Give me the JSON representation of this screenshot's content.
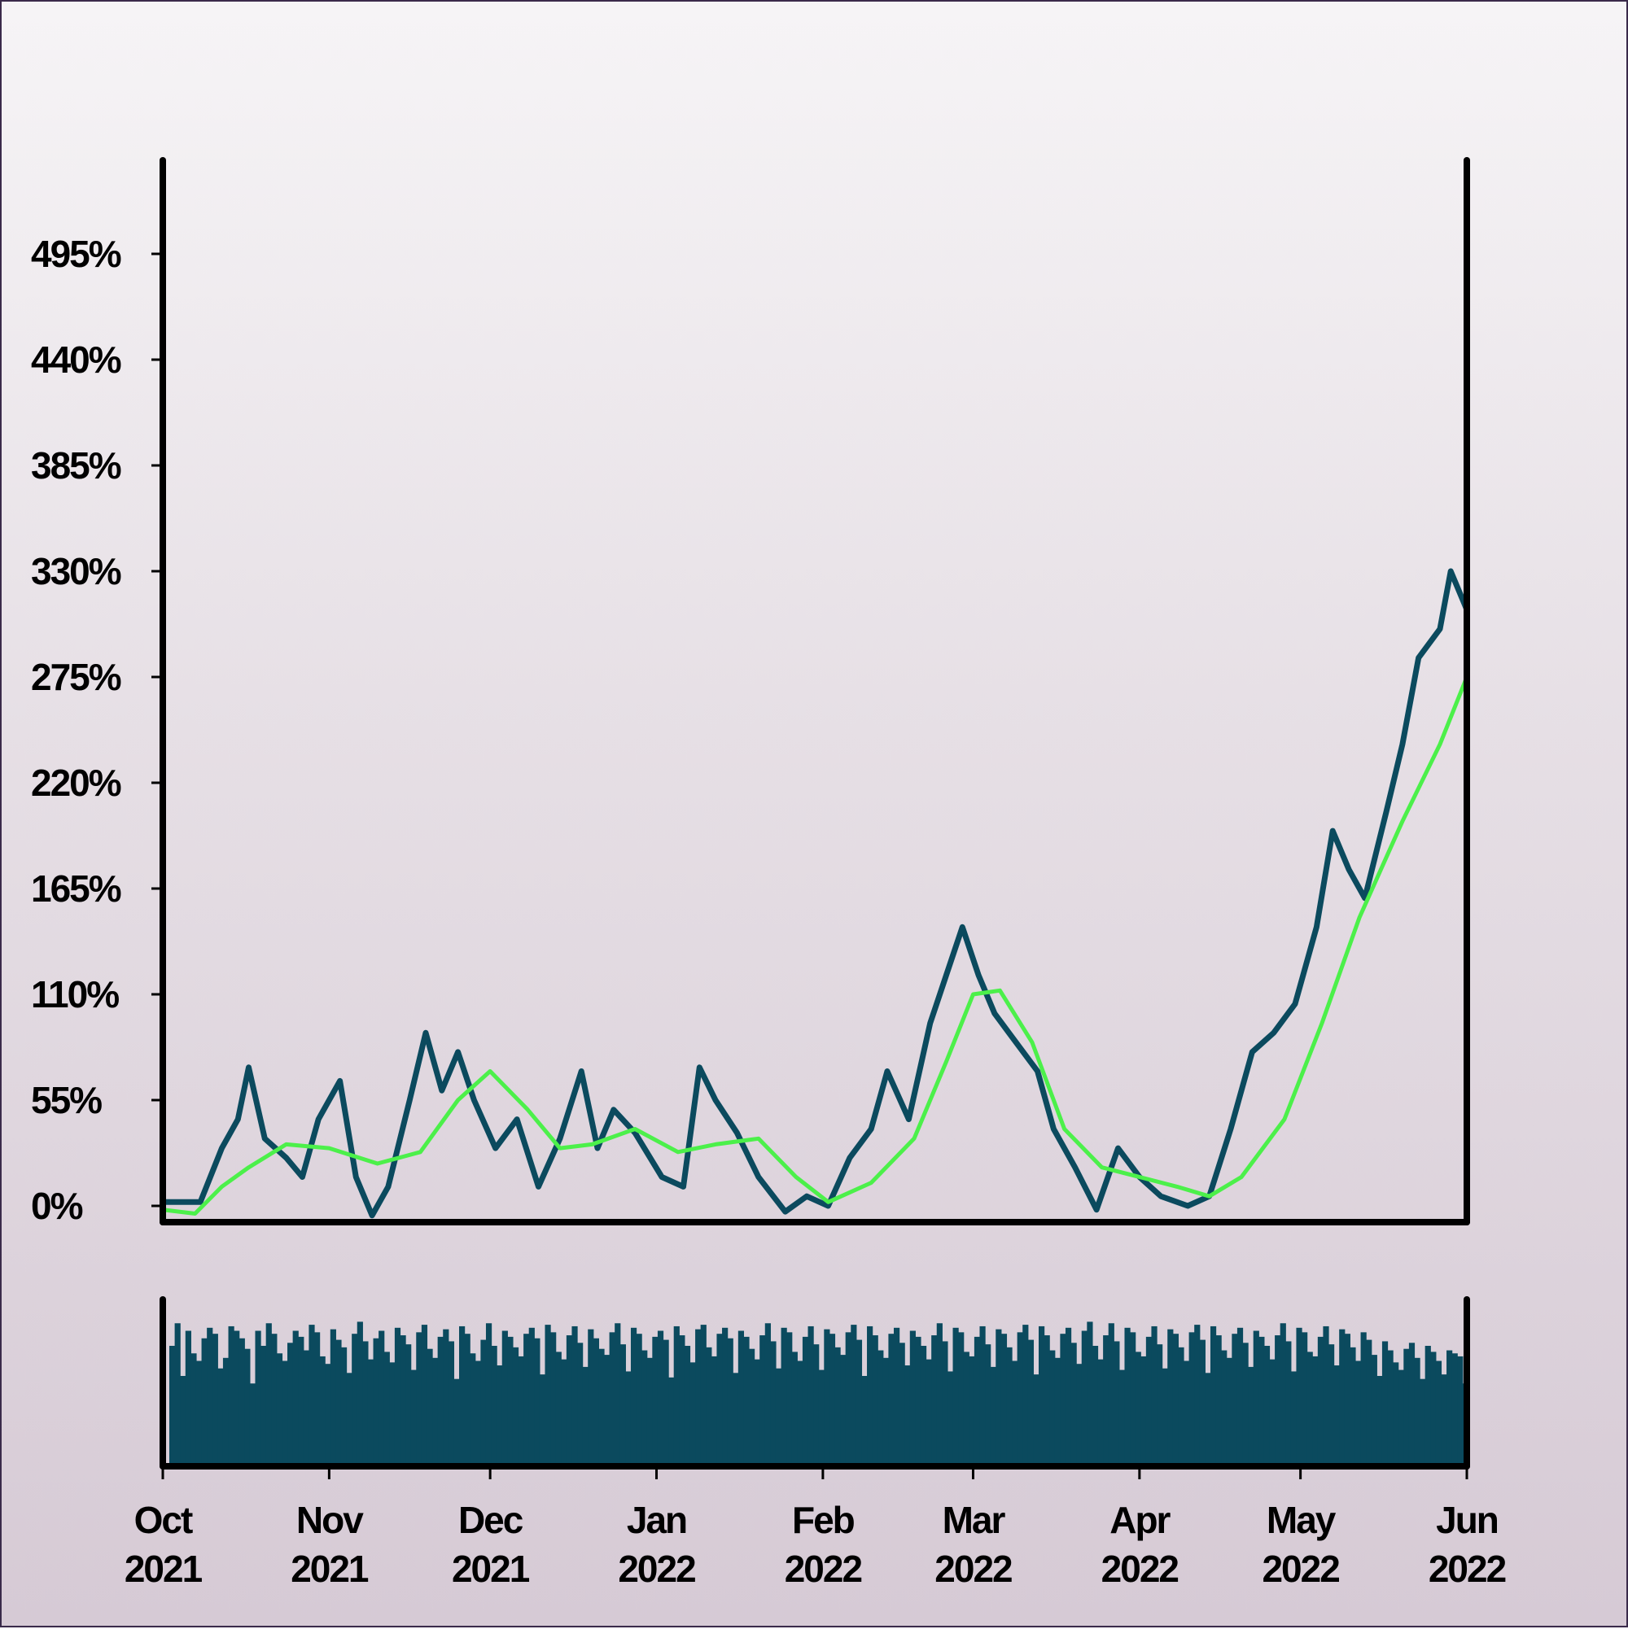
{
  "chart_data": {
    "type": "line",
    "x_range": [
      "2021-10-01",
      "2022-06-01"
    ],
    "ylim": [
      0,
      550
    ],
    "y_ticks": [
      "0%",
      "55%",
      "110%",
      "165%",
      "220%",
      "275%",
      "330%",
      "385%",
      "440%",
      "495%"
    ],
    "y_tick_values": [
      0,
      55,
      110,
      165,
      220,
      275,
      330,
      385,
      440,
      495
    ],
    "x_ticks": [
      {
        "month": "Oct",
        "year": "2021",
        "date": "2021-10-01"
      },
      {
        "month": "Nov",
        "year": "2021",
        "date": "2021-11-01"
      },
      {
        "month": "Dec",
        "year": "2021",
        "date": "2021-12-01"
      },
      {
        "month": "Jan",
        "year": "2022",
        "date": "2022-01-01"
      },
      {
        "month": "Feb",
        "year": "2022",
        "date": "2022-02-01"
      },
      {
        "month": "Mar",
        "year": "2022",
        "date": "2022-03-01"
      },
      {
        "month": "Apr",
        "year": "2022",
        "date": "2022-04-01"
      },
      {
        "month": "May",
        "year": "2022",
        "date": "2022-05-01"
      },
      {
        "month": "Jun",
        "year": "2022",
        "date": "2022-06-01"
      }
    ],
    "series": [
      {
        "color": "#0b4a5e",
        "points": [
          [
            "2021-10-01",
            2
          ],
          [
            "2021-10-08",
            2
          ],
          [
            "2021-10-12",
            30
          ],
          [
            "2021-10-15",
            45
          ],
          [
            "2021-10-17",
            72
          ],
          [
            "2021-10-20",
            35
          ],
          [
            "2021-10-24",
            25
          ],
          [
            "2021-10-27",
            15
          ],
          [
            "2021-10-30",
            45
          ],
          [
            "2021-11-03",
            65
          ],
          [
            "2021-11-06",
            15
          ],
          [
            "2021-11-09",
            -5
          ],
          [
            "2021-11-12",
            10
          ],
          [
            "2021-11-16",
            55
          ],
          [
            "2021-11-19",
            90
          ],
          [
            "2021-11-22",
            60
          ],
          [
            "2021-11-25",
            80
          ],
          [
            "2021-11-28",
            55
          ],
          [
            "2021-12-02",
            30
          ],
          [
            "2021-12-06",
            45
          ],
          [
            "2021-12-10",
            10
          ],
          [
            "2021-12-14",
            35
          ],
          [
            "2021-12-18",
            70
          ],
          [
            "2021-12-21",
            30
          ],
          [
            "2021-12-24",
            50
          ],
          [
            "2021-12-28",
            38
          ],
          [
            "2022-01-02",
            15
          ],
          [
            "2022-01-06",
            10
          ],
          [
            "2022-01-09",
            72
          ],
          [
            "2022-01-12",
            55
          ],
          [
            "2022-01-16",
            38
          ],
          [
            "2022-01-20",
            15
          ],
          [
            "2022-01-25",
            -3
          ],
          [
            "2022-01-29",
            5
          ],
          [
            "2022-02-02",
            0
          ],
          [
            "2022-02-06",
            25
          ],
          [
            "2022-02-10",
            40
          ],
          [
            "2022-02-13",
            70
          ],
          [
            "2022-02-17",
            45
          ],
          [
            "2022-02-21",
            95
          ],
          [
            "2022-02-24",
            120
          ],
          [
            "2022-02-27",
            145
          ],
          [
            "2022-03-02",
            120
          ],
          [
            "2022-03-05",
            100
          ],
          [
            "2022-03-09",
            85
          ],
          [
            "2022-03-13",
            70
          ],
          [
            "2022-03-16",
            40
          ],
          [
            "2022-03-20",
            20
          ],
          [
            "2022-03-24",
            -2
          ],
          [
            "2022-03-28",
            30
          ],
          [
            "2022-04-01",
            15
          ],
          [
            "2022-04-05",
            5
          ],
          [
            "2022-04-10",
            0
          ],
          [
            "2022-04-14",
            5
          ],
          [
            "2022-04-18",
            40
          ],
          [
            "2022-04-22",
            80
          ],
          [
            "2022-04-26",
            90
          ],
          [
            "2022-04-30",
            105
          ],
          [
            "2022-05-04",
            145
          ],
          [
            "2022-05-07",
            195
          ],
          [
            "2022-05-10",
            175
          ],
          [
            "2022-05-13",
            160
          ],
          [
            "2022-05-17",
            205
          ],
          [
            "2022-05-20",
            240
          ],
          [
            "2022-05-23",
            285
          ],
          [
            "2022-05-27",
            300
          ],
          [
            "2022-05-29",
            330
          ],
          [
            "2022-06-01",
            310
          ]
        ]
      },
      {
        "color": "#4cf04a",
        "points": [
          [
            "2021-10-01",
            -2
          ],
          [
            "2021-10-07",
            -4
          ],
          [
            "2021-10-12",
            10
          ],
          [
            "2021-10-17",
            20
          ],
          [
            "2021-10-24",
            32
          ],
          [
            "2021-11-01",
            30
          ],
          [
            "2021-11-10",
            22
          ],
          [
            "2021-11-18",
            28
          ],
          [
            "2021-11-25",
            55
          ],
          [
            "2021-12-01",
            70
          ],
          [
            "2021-12-08",
            50
          ],
          [
            "2021-12-14",
            30
          ],
          [
            "2021-12-20",
            32
          ],
          [
            "2021-12-28",
            40
          ],
          [
            "2022-01-05",
            28
          ],
          [
            "2022-01-12",
            32
          ],
          [
            "2022-01-20",
            35
          ],
          [
            "2022-01-27",
            15
          ],
          [
            "2022-02-02",
            2
          ],
          [
            "2022-02-10",
            12
          ],
          [
            "2022-02-18",
            35
          ],
          [
            "2022-02-24",
            75
          ],
          [
            "2022-03-01",
            110
          ],
          [
            "2022-03-06",
            112
          ],
          [
            "2022-03-12",
            85
          ],
          [
            "2022-03-18",
            40
          ],
          [
            "2022-03-25",
            20
          ],
          [
            "2022-04-01",
            15
          ],
          [
            "2022-04-08",
            10
          ],
          [
            "2022-04-14",
            5
          ],
          [
            "2022-04-20",
            15
          ],
          [
            "2022-04-28",
            45
          ],
          [
            "2022-05-05",
            95
          ],
          [
            "2022-05-12",
            150
          ],
          [
            "2022-05-20",
            200
          ],
          [
            "2022-05-27",
            240
          ],
          [
            "2022-06-01",
            275
          ]
        ]
      }
    ],
    "volume": {
      "color": "#0b4a5e",
      "min": 0,
      "max": 100,
      "step_days": 1,
      "values": [
        80,
        95,
        60,
        90,
        75,
        70,
        85,
        92,
        88,
        65,
        72,
        93,
        90,
        85,
        78,
        55,
        90,
        80,
        95,
        88,
        75,
        70,
        82,
        90,
        86,
        77,
        94,
        89,
        73,
        68,
        91,
        84,
        79,
        62,
        88,
        96,
        83,
        71,
        85,
        90,
        76,
        69,
        92,
        87,
        81,
        64,
        89,
        94,
        78,
        72,
        86,
        91,
        83,
        58,
        93,
        88,
        75,
        70,
        84,
        95,
        80,
        67,
        90,
        86,
        79,
        73,
        88,
        92,
        85,
        61,
        94,
        89,
        76,
        71,
        87,
        93,
        82,
        66,
        91,
        85,
        78,
        74,
        89,
        95,
        81,
        63,
        92,
        88,
        77,
        72,
        86,
        90,
        84,
        59,
        93,
        87,
        80,
        69,
        91,
        94,
        79,
        73,
        88,
        92,
        85,
        62,
        90,
        86,
        78,
        71,
        87,
        95,
        83,
        65,
        92,
        89,
        76,
        70,
        86,
        93,
        81,
        64,
        91,
        88,
        79,
        74,
        89,
        94,
        84,
        60,
        93,
        87,
        77,
        72,
        88,
        92,
        82,
        67,
        90,
        86,
        80,
        71,
        87,
        95,
        83,
        63,
        92,
        89,
        76,
        73,
        86,
        93,
        81,
        66,
        91,
        88,
        79,
        70,
        89,
        94,
        84,
        61,
        93,
        87,
        77,
        72,
        88,
        92,
        82,
        68,
        90,
        96,
        80,
        71,
        87,
        95,
        83,
        64,
        92,
        89,
        76,
        73,
        86,
        93,
        81,
        65,
        91,
        88,
        79,
        70,
        89,
        94,
        84,
        62,
        93,
        87,
        77,
        72,
        88,
        92,
        82,
        66,
        90,
        86,
        80,
        71,
        87,
        95,
        83,
        63,
        92,
        89,
        76,
        73,
        86,
        93,
        81,
        67,
        91,
        88,
        79,
        70,
        89,
        84,
        74,
        60,
        83,
        77,
        69,
        64,
        78,
        82,
        72,
        58,
        80,
        76,
        70,
        61,
        77,
        75,
        73,
        55,
        72,
        69,
        66,
        57,
        70,
        68,
        60,
        52,
        65,
        62,
        58,
        48,
        60,
        55,
        50,
        42,
        52,
        48,
        44,
        35,
        45,
        38,
        30,
        25,
        35
      ]
    }
  }
}
